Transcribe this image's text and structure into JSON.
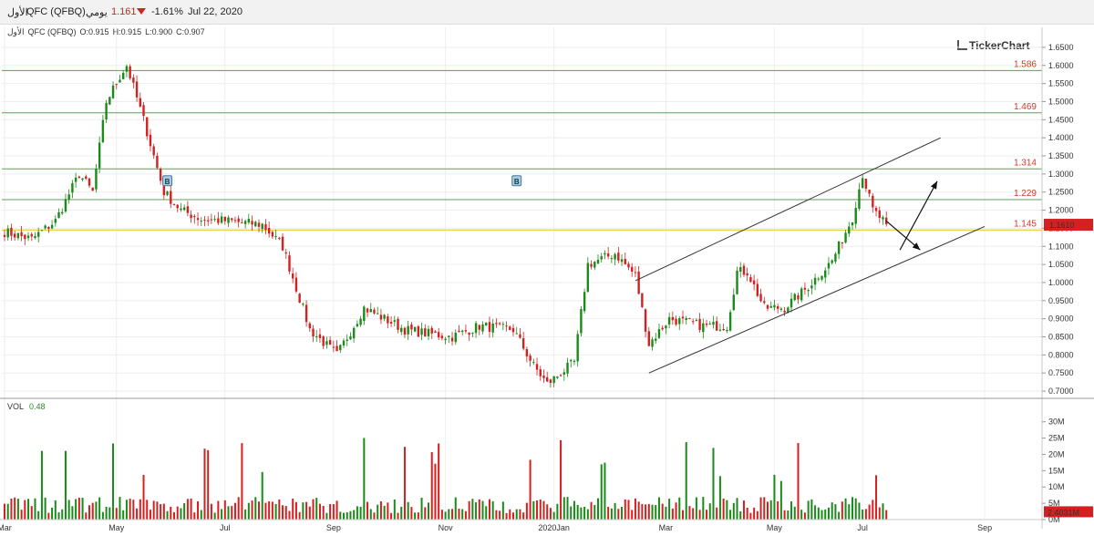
{
  "header": {
    "symbol": "QFC (QFBQ)",
    "name_ar": "الأول",
    "interval": "يومي",
    "price": "1.161",
    "change": "-1.61%",
    "date": "Jul 22, 2020"
  },
  "ohlc": {
    "name_ar": "الأول",
    "symbol": "QFC (QFBQ)",
    "open": "O:0.915",
    "high": "H:0.915",
    "low": "L:0.900",
    "close": "C:0.907"
  },
  "brand": "TickerChart",
  "volume_panel": {
    "label": "VOL",
    "value": "0.48",
    "last_volume_label": "2.4031M"
  },
  "colors": {
    "up": "#1a8a1a",
    "down": "#d42020",
    "level_line": "#5aa05a",
    "support_line": "#f0d050",
    "channel": "#333333",
    "price_tag": "#d42020"
  },
  "chart_data": {
    "type": "candlestick",
    "x_tick_labels": [
      "Mar",
      "May",
      "Jul",
      "Sep",
      "Nov",
      "2020Jan",
      "Mar",
      "May",
      "Jul",
      "Sep"
    ],
    "y_tick_labels": [
      "1.6500",
      "1.6000",
      "1.5500",
      "1.5000",
      "1.4500",
      "1.4000",
      "1.3500",
      "1.3000",
      "1.2500",
      "1.2000",
      "1.1500",
      "1.1000",
      "1.0500",
      "1.0000",
      "0.9500",
      "0.9000",
      "0.8500",
      "0.8000",
      "0.7500",
      "0.7000"
    ],
    "ylim": [
      0.68,
      1.68
    ],
    "last_price_label": "1.1610",
    "levels": [
      {
        "value": 1.586,
        "label": "1.586"
      },
      {
        "value": 1.469,
        "label": "1.469"
      },
      {
        "value": 1.314,
        "label": "1.314"
      },
      {
        "value": 1.229,
        "label": "1.229"
      },
      {
        "value": 1.145,
        "label": "1.145"
      }
    ],
    "markers": [
      {
        "label": "B",
        "date_index": 48
      },
      {
        "label": "B",
        "date_index": 151
      }
    ],
    "channel": {
      "upper": [
        [
          186,
          1.005
        ],
        [
          276,
          1.4
        ]
      ],
      "lower": [
        [
          190,
          0.75
        ],
        [
          289,
          1.155
        ]
      ]
    },
    "arrows": [
      {
        "from": [
          260,
          1.17
        ],
        "to": [
          270,
          1.09
        ]
      },
      {
        "from": [
          264,
          1.09
        ],
        "to": [
          275,
          1.28
        ]
      }
    ],
    "anchors": [
      [
        0,
        1.14
      ],
      [
        8,
        1.12
      ],
      [
        15,
        1.17
      ],
      [
        22,
        1.3
      ],
      [
        26,
        1.25
      ],
      [
        30,
        1.5
      ],
      [
        34,
        1.57
      ],
      [
        36,
        1.6
      ],
      [
        41,
        1.45
      ],
      [
        47,
        1.25
      ],
      [
        52,
        1.2
      ],
      [
        58,
        1.175
      ],
      [
        66,
        1.17
      ],
      [
        76,
        1.16
      ],
      [
        82,
        1.1
      ],
      [
        90,
        0.87
      ],
      [
        98,
        0.8
      ],
      [
        106,
        0.93
      ],
      [
        118,
        0.87
      ],
      [
        124,
        0.86
      ],
      [
        132,
        0.85
      ],
      [
        140,
        0.88
      ],
      [
        150,
        0.87
      ],
      [
        156,
        0.77
      ],
      [
        160,
        0.72
      ],
      [
        168,
        0.78
      ],
      [
        172,
        1.05
      ],
      [
        180,
        1.08
      ],
      [
        186,
        1.02
      ],
      [
        190,
        0.83
      ],
      [
        196,
        0.9
      ],
      [
        206,
        0.88
      ],
      [
        213,
        0.88
      ],
      [
        216,
        1.03
      ],
      [
        219,
        1.03
      ],
      [
        224,
        0.93
      ],
      [
        230,
        0.93
      ],
      [
        236,
        0.98
      ],
      [
        244,
        1.06
      ],
      [
        250,
        1.18
      ],
      [
        253,
        1.3
      ],
      [
        256,
        1.2
      ],
      [
        260,
        1.161
      ]
    ],
    "volume_ylim": [
      0,
      33000000
    ],
    "volume_tick_labels": [
      "30M",
      "25M",
      "20M",
      "15M",
      "10M",
      "5M",
      "0M"
    ]
  }
}
